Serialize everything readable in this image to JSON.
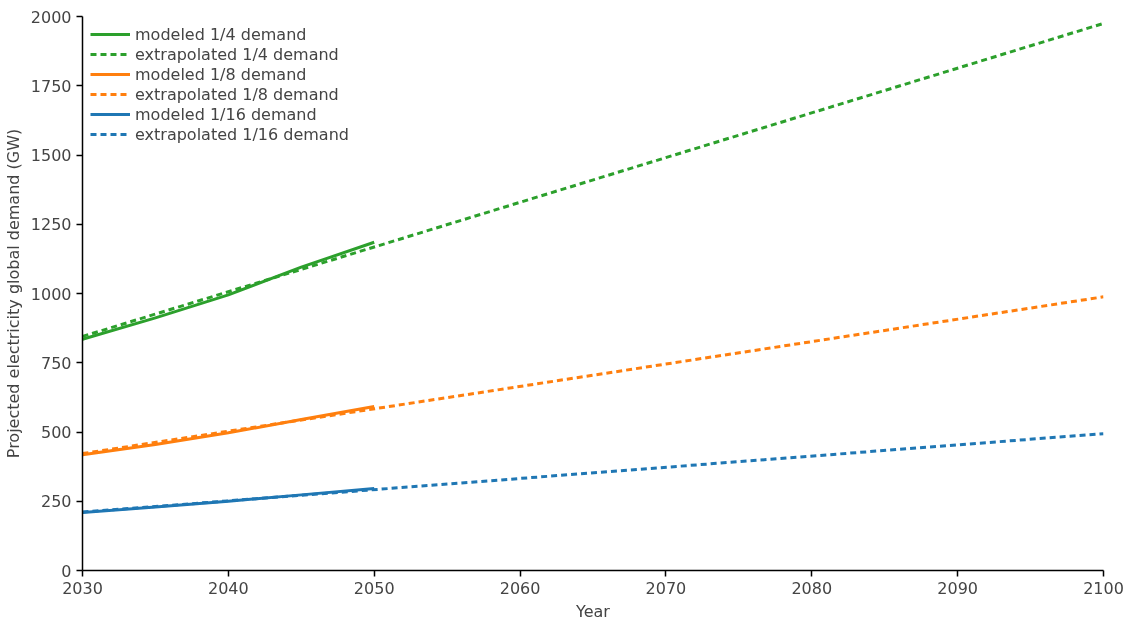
{
  "chart_data": {
    "type": "line",
    "xlabel": "Year",
    "ylabel": "Projected electricity global demand (GW)",
    "xlim": [
      2030,
      2100
    ],
    "xticks": [
      2030,
      2040,
      2050,
      2060,
      2070,
      2080,
      2090,
      2100
    ],
    "ylim": [
      0,
      2000
    ],
    "yticks": [
      0,
      250,
      500,
      750,
      1000,
      1250,
      1500,
      1750,
      2000
    ],
    "grid": false,
    "legend": "top left",
    "marker": "none",
    "series": [
      {
        "name": "modeled 1/4 demand",
        "color": "#2ca02c",
        "line_style": "solid",
        "x": [
          2030,
          2035,
          2040,
          2045,
          2050
        ],
        "values": [
          835,
          912,
          995,
          1095,
          1185
        ]
      },
      {
        "name": "extrapolated 1/4 demand",
        "color": "#2ca02c",
        "line_style": "dashed",
        "x": [
          2030,
          2100
        ],
        "values": [
          845,
          1975
        ]
      },
      {
        "name": "modeled 1/8 demand",
        "color": "#ff7f0e",
        "line_style": "solid",
        "x": [
          2030,
          2035,
          2040,
          2045,
          2050
        ],
        "values": [
          418,
          455,
          497,
          545,
          592
        ]
      },
      {
        "name": "extrapolated 1/8 demand",
        "color": "#ff7f0e",
        "line_style": "dashed",
        "x": [
          2030,
          2100
        ],
        "values": [
          422,
          988
        ]
      },
      {
        "name": "modeled 1/16 demand",
        "color": "#1f77b4",
        "line_style": "solid",
        "x": [
          2030,
          2035,
          2040,
          2045,
          2050
        ],
        "values": [
          209,
          229,
          250,
          273,
          296
        ]
      },
      {
        "name": "extrapolated 1/16 demand",
        "color": "#1f77b4",
        "line_style": "dashed",
        "x": [
          2030,
          2100
        ],
        "values": [
          211,
          494
        ]
      }
    ]
  }
}
